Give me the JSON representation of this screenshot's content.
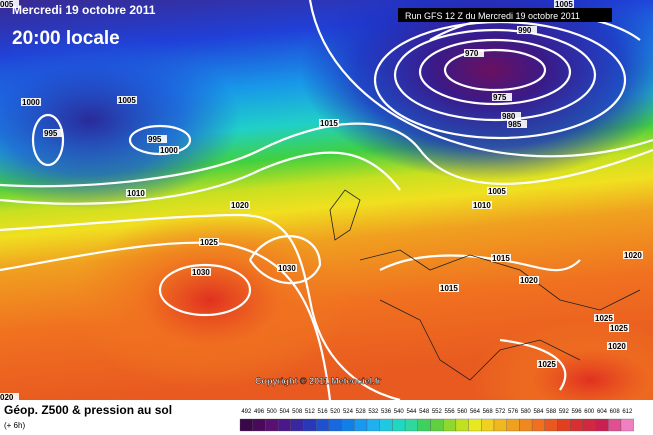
{
  "header": {
    "date": "Mercredi 19 octobre 2011",
    "time": "20:00 locale",
    "run": "Run GFS 12 Z du Mercredi 19 octobre 2011"
  },
  "isobar_labels": [
    "1000",
    "1005",
    "995",
    "995",
    "1000",
    "1015",
    "1010",
    "1020",
    "1025",
    "1030",
    "1030",
    "970",
    "990",
    "975",
    "980",
    "985",
    "1005",
    "1010",
    "1015",
    "1020",
    "1015",
    "1025",
    "1020",
    "1025",
    "1025",
    "1020",
    "1005",
    "005",
    "020"
  ],
  "copyright": "Copyright © 2011 Meteociel.fr",
  "footer": {
    "title": "Géop. Z500 & pression au sol",
    "subtitle": "(+ 6h)"
  },
  "scale": [
    492,
    496,
    500,
    504,
    508,
    512,
    516,
    520,
    524,
    528,
    532,
    536,
    540,
    544,
    548,
    552,
    556,
    560,
    564,
    568,
    572,
    576,
    580,
    584,
    588,
    592,
    596,
    600,
    604,
    608,
    612
  ]
}
